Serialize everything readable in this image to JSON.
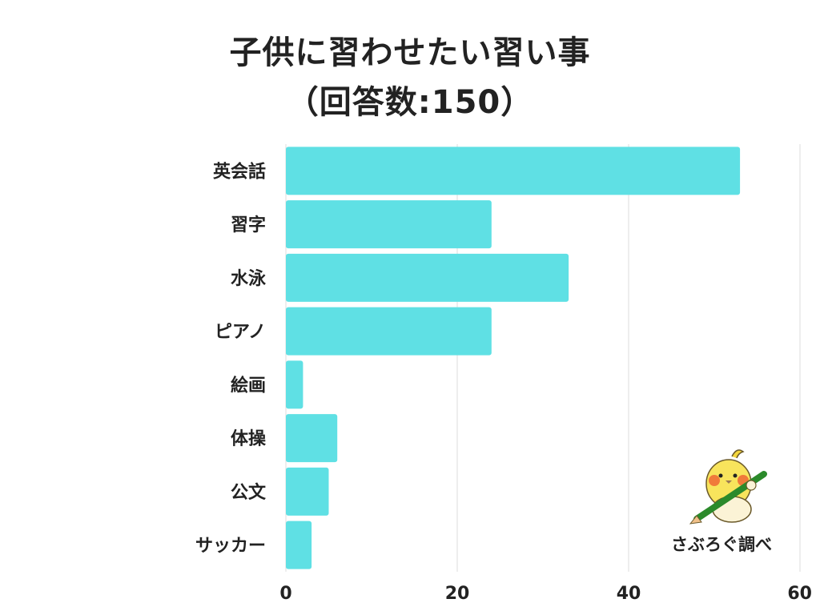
{
  "title": {
    "line1": "子供に習わせたい習い事",
    "line2": "（回答数:150）"
  },
  "credit": "さぶろぐ調べ",
  "colors": {
    "bar": "#5fe0e4",
    "grid": "#dddddd",
    "text": "#222222"
  },
  "mascot_icon": "bird-with-pencil-icon",
  "chart_data": {
    "type": "bar",
    "orientation": "horizontal",
    "title": "子供に習わせたい習い事（回答数:150）",
    "categories": [
      "英会話",
      "習字",
      "水泳",
      "ピアノ",
      "絵画",
      "体操",
      "公文",
      "サッカー"
    ],
    "values": [
      53,
      24,
      33,
      24,
      2,
      6,
      5,
      3
    ],
    "xlim": [
      0,
      60
    ],
    "xticks": [
      0,
      20,
      40,
      60
    ],
    "grid": true,
    "legend": "none",
    "xlabel": "",
    "ylabel": ""
  }
}
